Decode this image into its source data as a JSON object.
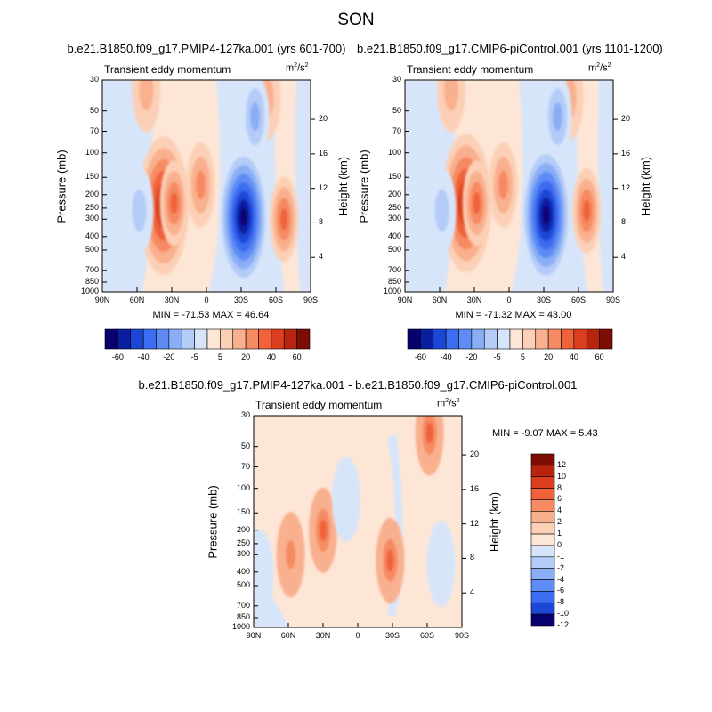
{
  "title": "SON",
  "chart_data": [
    {
      "type": "heatmap",
      "title": "b.e21.B1850.f09_g17.PMIP4-127ka.001 (yrs 601-700)",
      "left_string": "Transient eddy momentum",
      "units": "m2/s2",
      "ylabel": "Pressure (mb)",
      "ylabel_right": "Height (km)",
      "x_ticks": [
        "90N",
        "60N",
        "30N",
        "0",
        "30S",
        "60S",
        "90S"
      ],
      "y_ticks": [
        30,
        50,
        70,
        100,
        150,
        200,
        250,
        300,
        400,
        500,
        700,
        850,
        1000
      ],
      "height_ticks": [
        20,
        16,
        12,
        8,
        4
      ],
      "ylim": [
        1000,
        30
      ],
      "xlim": [
        90,
        -90
      ],
      "min_label": "MIN = -71.53",
      "max_label": "MAX = 46.64",
      "min": -71.53,
      "max": 46.64,
      "contour_levels": [
        -60,
        -50,
        -40,
        -30,
        -20,
        -10,
        -5,
        -1,
        1,
        5,
        10,
        20,
        30,
        40,
        50,
        60
      ],
      "colorbar_labels": [
        "-60",
        "-40",
        "-20",
        "-5",
        "5",
        "20",
        "40",
        "60"
      ],
      "features": [
        {
          "lat": 37,
          "p": 240,
          "value": 46.64
        },
        {
          "lat": 28,
          "p": 230,
          "value": 30
        },
        {
          "lat": 5,
          "p": 170,
          "value": 20
        },
        {
          "lat": -32,
          "p": 290,
          "value": -71.53
        },
        {
          "lat": -67,
          "p": 300,
          "value": 30
        },
        {
          "lat": 58,
          "p": 260,
          "value": -10
        },
        {
          "lat": 52,
          "p": 35,
          "value": 8
        },
        {
          "lat": -52,
          "p": 40,
          "value": 8
        },
        {
          "lat": -42,
          "p": 55,
          "value": -15
        }
      ]
    },
    {
      "type": "heatmap",
      "title": "b.e21.B1850.f09_g17.CMIP6-piControl.001 (yrs 1101-1200)",
      "left_string": "Transient eddy momentum",
      "units": "m2/s2",
      "ylabel": "Pressure (mb)",
      "ylabel_right": "Height (km)",
      "x_ticks": [
        "90N",
        "60N",
        "30N",
        "0",
        "30S",
        "60S",
        "90S"
      ],
      "y_ticks": [
        30,
        50,
        70,
        100,
        150,
        200,
        250,
        300,
        400,
        500,
        700,
        850,
        1000
      ],
      "height_ticks": [
        20,
        16,
        12,
        8,
        4
      ],
      "ylim": [
        1000,
        30
      ],
      "xlim": [
        90,
        -90
      ],
      "min_label": "MIN = -71.32",
      "max_label": "MAX = 43.00",
      "min": -71.32,
      "max": 43.0,
      "contour_levels": [
        -60,
        -50,
        -40,
        -30,
        -20,
        -10,
        -5,
        -1,
        1,
        5,
        10,
        20,
        30,
        40,
        50,
        60
      ],
      "colorbar_labels": [
        "-60",
        "-40",
        "-20",
        "-5",
        "5",
        "20",
        "40",
        "60"
      ],
      "features": [
        {
          "lat": 37,
          "p": 230,
          "value": 43.0
        },
        {
          "lat": 28,
          "p": 230,
          "value": 28
        },
        {
          "lat": 5,
          "p": 170,
          "value": 18
        },
        {
          "lat": -32,
          "p": 280,
          "value": -71.32
        },
        {
          "lat": -67,
          "p": 260,
          "value": 28
        },
        {
          "lat": 58,
          "p": 260,
          "value": -10
        },
        {
          "lat": 50,
          "p": 35,
          "value": 8
        },
        {
          "lat": -52,
          "p": 40,
          "value": 8
        },
        {
          "lat": -42,
          "p": 55,
          "value": -15
        }
      ]
    },
    {
      "type": "heatmap",
      "title": "b.e21.B1850.f09_g17.PMIP4-127ka.001 - b.e21.B1850.f09_g17.CMIP6-piControl.001",
      "left_string": "Transient eddy momentum",
      "units": "m2/s2",
      "ylabel": "Pressure (mb)",
      "ylabel_right": "Height (km)",
      "x_ticks": [
        "90N",
        "60N",
        "30N",
        "0",
        "30S",
        "60S",
        "90S"
      ],
      "y_ticks": [
        30,
        50,
        70,
        100,
        150,
        200,
        250,
        300,
        400,
        500,
        700,
        850,
        1000
      ],
      "height_ticks": [
        20,
        16,
        12,
        8,
        4
      ],
      "ylim": [
        1000,
        30
      ],
      "xlim": [
        90,
        -90
      ],
      "min_label": "MIN =  -9.07",
      "max_label": "MAX =   5.43",
      "min": -9.07,
      "max": 5.43,
      "contour_levels": [
        -12,
        -10,
        -8,
        -6,
        -4,
        -2,
        -1,
        0,
        1,
        2,
        4,
        6,
        8,
        10,
        12
      ],
      "colorbar_labels": [
        "12",
        "10",
        "8",
        "6",
        "4",
        "2",
        "1",
        "0",
        "-1",
        "-2",
        "-4",
        "-6",
        "-8",
        "-10",
        "-12"
      ],
      "features": [
        {
          "lat": 30,
          "p": 200,
          "value": 4
        },
        {
          "lat": 58,
          "p": 300,
          "value": 2
        },
        {
          "lat": -28,
          "p": 330,
          "value": 5.43
        },
        {
          "lat": -62,
          "p": 40,
          "value": 4
        },
        {
          "lat": 10,
          "p": 120,
          "value": -1
        },
        {
          "lat": -72,
          "p": 350,
          "value": -1.5
        },
        {
          "lat": 85,
          "p": 400,
          "value": -1
        }
      ]
    }
  ]
}
